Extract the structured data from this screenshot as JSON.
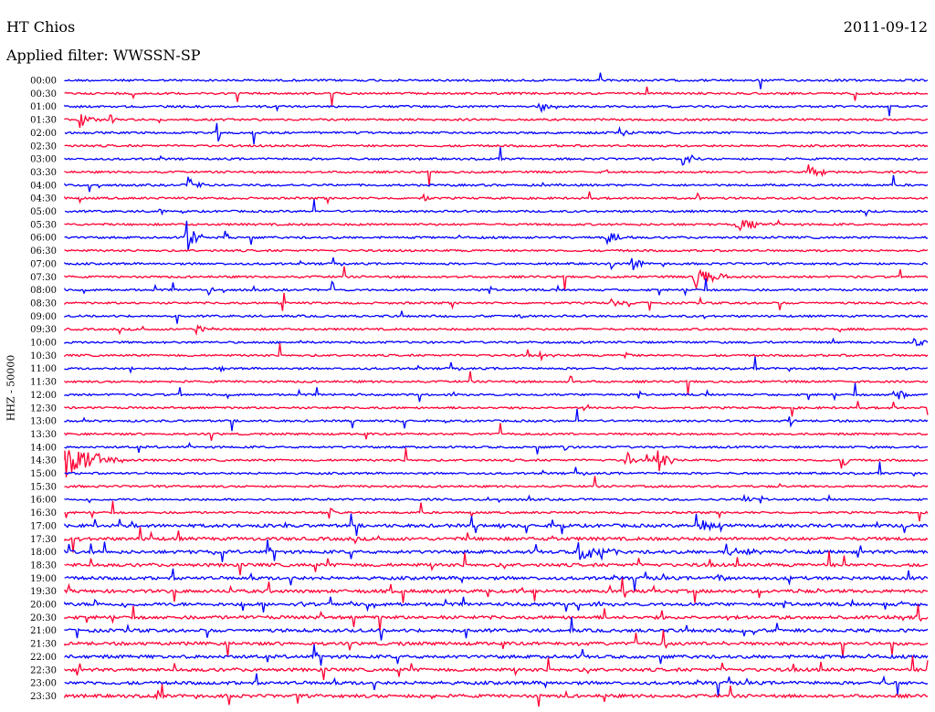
{
  "header": {
    "station": "HT Chios",
    "date": "2011-09-12",
    "filter_label": "Applied filter: WWSSN-SP"
  },
  "colors": {
    "trace_a": "#0000ff",
    "trace_b": "#ff0033"
  },
  "chart_data": {
    "type": "line",
    "title": "HT Chios",
    "ylabel": "HHZ - 50000",
    "grid": false,
    "legend": "none",
    "series_note": "helicorder traces, 48 half-hour rows, alternating blue/red",
    "rows": [
      {
        "label": "00:00",
        "color": "blue",
        "events": []
      },
      {
        "label": "00:30",
        "color": "red",
        "events": []
      },
      {
        "label": "01:00",
        "color": "blue",
        "events": [
          {
            "minute": 16.5,
            "amp": 0.4,
            "dur": 0.8
          }
        ]
      },
      {
        "label": "01:30",
        "color": "red",
        "events": [
          {
            "minute": 0.5,
            "amp": 0.7,
            "dur": 0.8
          },
          {
            "minute": 1.6,
            "amp": 0.3,
            "dur": 0.3
          }
        ]
      },
      {
        "label": "02:00",
        "color": "blue",
        "events": [
          {
            "minute": 5.3,
            "amp": 1.2,
            "dur": 0.1
          },
          {
            "minute": 19.3,
            "amp": 0.3,
            "dur": 0.4
          }
        ]
      },
      {
        "label": "02:30",
        "color": "red",
        "events": []
      },
      {
        "label": "03:00",
        "color": "blue",
        "events": [
          {
            "minute": 21.5,
            "amp": 0.5,
            "dur": 0.6
          }
        ]
      },
      {
        "label": "03:30",
        "color": "red",
        "events": [
          {
            "minute": 25.8,
            "amp": 0.8,
            "dur": 0.7
          },
          {
            "minute": 18.8,
            "amp": 0.2,
            "dur": 0.3
          }
        ]
      },
      {
        "label": "04:00",
        "color": "blue",
        "events": [
          {
            "minute": 4.3,
            "amp": 0.6,
            "dur": 0.6
          }
        ]
      },
      {
        "label": "04:30",
        "color": "red",
        "events": [
          {
            "minute": 12.5,
            "amp": 0.3,
            "dur": 0.3
          },
          {
            "minute": 22.0,
            "amp": 0.5,
            "dur": 0.1
          }
        ]
      },
      {
        "label": "05:00",
        "color": "blue",
        "events": [
          {
            "minute": 3.3,
            "amp": 0.8,
            "dur": 0.1
          }
        ]
      },
      {
        "label": "05:30",
        "color": "red",
        "events": [
          {
            "minute": 23.3,
            "amp": 0.6,
            "dur": 1.2
          }
        ]
      },
      {
        "label": "06:00",
        "color": "blue",
        "events": [
          {
            "minute": 4.2,
            "amp": 1.4,
            "dur": 0.6
          },
          {
            "minute": 18.8,
            "amp": 0.6,
            "dur": 0.9
          },
          {
            "minute": 5.6,
            "amp": 1.0,
            "dur": 0.1
          }
        ]
      },
      {
        "label": "06:30",
        "color": "red",
        "events": []
      },
      {
        "label": "07:00",
        "color": "blue",
        "events": [
          {
            "minute": 19.7,
            "amp": 0.7,
            "dur": 0.5
          },
          {
            "minute": 19.0,
            "amp": 0.4,
            "dur": 0.1
          }
        ]
      },
      {
        "label": "07:30",
        "color": "red",
        "events": [
          {
            "minute": 21.8,
            "amp": 1.0,
            "dur": 1.4
          }
        ]
      },
      {
        "label": "08:00",
        "color": "blue",
        "events": [
          {
            "minute": 9.3,
            "amp": 0.9,
            "dur": 0.1
          },
          {
            "minute": 5.0,
            "amp": 0.8,
            "dur": 0.1
          }
        ]
      },
      {
        "label": "08:30",
        "color": "red",
        "events": [
          {
            "minute": 7.6,
            "amp": 1.0,
            "dur": 0.1
          },
          {
            "minute": 19.0,
            "amp": 0.3,
            "dur": 0.5
          }
        ]
      },
      {
        "label": "09:00",
        "color": "blue",
        "events": [
          {
            "minute": 15.8,
            "amp": 0.6,
            "dur": 0.1
          }
        ]
      },
      {
        "label": "09:30",
        "color": "red",
        "events": [
          {
            "minute": 4.6,
            "amp": 0.3,
            "dur": 0.6
          }
        ]
      },
      {
        "label": "10:00",
        "color": "blue",
        "events": [
          {
            "minute": 29.5,
            "amp": 0.3,
            "dur": 0.6
          }
        ]
      },
      {
        "label": "10:30",
        "color": "red",
        "events": [
          {
            "minute": 16.5,
            "amp": 0.3,
            "dur": 0.6
          },
          {
            "minute": 19.5,
            "amp": 0.3,
            "dur": 0.3
          }
        ]
      },
      {
        "label": "11:00",
        "color": "blue",
        "events": [
          {
            "minute": 5.4,
            "amp": 0.2,
            "dur": 0.4
          },
          {
            "minute": 2.3,
            "amp": 0.3,
            "dur": 0.1
          }
        ]
      },
      {
        "label": "11:30",
        "color": "red",
        "events": [
          {
            "minute": 17.6,
            "amp": 0.6,
            "dur": 0.1
          }
        ]
      },
      {
        "label": "12:00",
        "color": "blue",
        "events": [
          {
            "minute": 28.8,
            "amp": 0.6,
            "dur": 0.6
          }
        ]
      },
      {
        "label": "12:30",
        "color": "red",
        "events": [
          {
            "minute": 18.2,
            "amp": 0.3,
            "dur": 0.1
          },
          {
            "minute": 28.8,
            "amp": 0.7,
            "dur": 0.1
          }
        ]
      },
      {
        "label": "13:00",
        "color": "blue",
        "events": [
          {
            "minute": 0.6,
            "amp": 0.6,
            "dur": 0.1
          },
          {
            "minute": 25.2,
            "amp": 0.5,
            "dur": 0.1
          }
        ]
      },
      {
        "label": "13:30",
        "color": "red",
        "events": []
      },
      {
        "label": "14:00",
        "color": "blue",
        "events": [
          {
            "minute": 17.4,
            "amp": 0.6,
            "dur": 0.1
          }
        ]
      },
      {
        "label": "14:30",
        "color": "red",
        "events": [
          {
            "minute": 0.0,
            "amp": 1.4,
            "dur": 2.0
          },
          {
            "minute": 20.5,
            "amp": 1.2,
            "dur": 0.7
          },
          {
            "minute": 19.5,
            "amp": 0.6,
            "dur": 0.4
          },
          {
            "minute": 27.0,
            "amp": 0.6,
            "dur": 0.4
          }
        ]
      },
      {
        "label": "15:00",
        "color": "blue",
        "events": []
      },
      {
        "label": "15:30",
        "color": "red",
        "events": [
          {
            "minute": 19.7,
            "amp": 0.6,
            "dur": 0.1
          }
        ]
      },
      {
        "label": "16:00",
        "color": "blue",
        "events": [
          {
            "minute": 23.6,
            "amp": 0.4,
            "dur": 0.4
          }
        ]
      },
      {
        "label": "16:30",
        "color": "red",
        "events": [
          {
            "minute": 9.2,
            "amp": 0.6,
            "dur": 0.2
          }
        ]
      },
      {
        "label": "17:00",
        "color": "blue",
        "events": [
          {
            "minute": 22.1,
            "amp": 0.5,
            "dur": 1.0
          }
        ]
      },
      {
        "label": "17:30",
        "color": "red",
        "events": []
      },
      {
        "label": "18:00",
        "color": "blue",
        "events": [
          {
            "minute": 17.8,
            "amp": 0.8,
            "dur": 1.4
          },
          {
            "minute": 23.0,
            "amp": 0.6,
            "dur": 1.2
          },
          {
            "minute": 5.5,
            "amp": 0.8,
            "dur": 0.2
          }
        ]
      },
      {
        "label": "18:30",
        "color": "red",
        "events": []
      },
      {
        "label": "19:00",
        "color": "blue",
        "events": [
          {
            "minute": 22.7,
            "amp": 0.3,
            "dur": 0.6
          }
        ]
      },
      {
        "label": "19:30",
        "color": "red",
        "events": []
      },
      {
        "label": "20:00",
        "color": "blue",
        "events": [
          {
            "minute": 8.2,
            "amp": 0.3,
            "dur": 0.4
          }
        ]
      },
      {
        "label": "20:30",
        "color": "red",
        "events": []
      },
      {
        "label": "21:00",
        "color": "blue",
        "events": []
      },
      {
        "label": "21:30",
        "color": "red",
        "events": []
      },
      {
        "label": "22:00",
        "color": "blue",
        "events": []
      },
      {
        "label": "22:30",
        "color": "red",
        "events": []
      },
      {
        "label": "23:00",
        "color": "blue",
        "events": []
      },
      {
        "label": "23:30",
        "color": "red",
        "events": []
      }
    ],
    "x_range_minutes": [
      0,
      30
    ]
  }
}
